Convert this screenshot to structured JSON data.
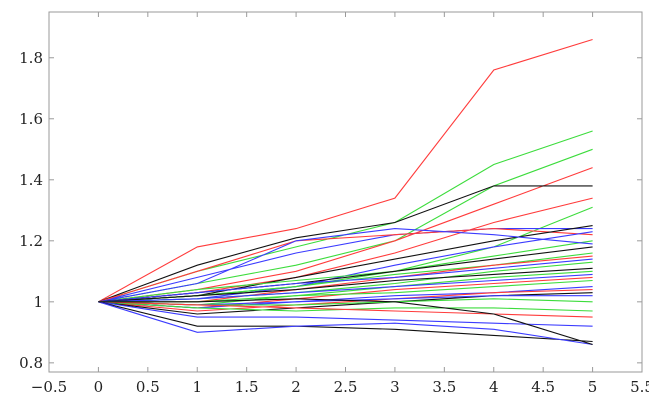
{
  "chart_data": {
    "type": "line",
    "title": "",
    "xlabel": "",
    "ylabel": "",
    "xlim": [
      -0.5,
      5.5
    ],
    "ylim": [
      0.77,
      1.95
    ],
    "xticks": [
      -0.5,
      0,
      0.5,
      1,
      1.5,
      2,
      2.5,
      3,
      3.5,
      4,
      4.5,
      5,
      5.5
    ],
    "xtick_labels": [
      "−0.5",
      "0",
      "0.5",
      "1",
      "1.5",
      "2",
      "2.5",
      "3",
      "3.5",
      "4",
      "4.5",
      "5",
      "5.5"
    ],
    "yticks": [
      0.8,
      1,
      1.2,
      1.4,
      1.6,
      1.8
    ],
    "ytick_labels": [
      "0.8",
      "1",
      "1.2",
      "1.4",
      "1.6",
      "1.8"
    ],
    "grid": false,
    "legend": "none",
    "x": [
      0,
      1,
      2,
      3,
      4,
      5
    ],
    "series": [
      {
        "color": "#ff3b3b",
        "values": [
          1,
          1.18,
          1.24,
          1.34,
          1.76,
          1.86
        ]
      },
      {
        "color": "#3cdc3c",
        "values": [
          1,
          1.1,
          1.18,
          1.26,
          1.45,
          1.56
        ]
      },
      {
        "color": "#3cdc3c",
        "values": [
          1,
          1.06,
          1.12,
          1.2,
          1.38,
          1.5
        ]
      },
      {
        "color": "#ff3b3b",
        "values": [
          1,
          1.04,
          1.1,
          1.2,
          1.32,
          1.44
        ]
      },
      {
        "color": "#111111",
        "values": [
          1,
          1.12,
          1.21,
          1.26,
          1.38,
          1.38
        ]
      },
      {
        "color": "#ff3b3b",
        "values": [
          1,
          1.03,
          1.08,
          1.16,
          1.26,
          1.34
        ]
      },
      {
        "color": "#3cdc3c",
        "values": [
          1,
          1.02,
          1.05,
          1.1,
          1.18,
          1.31
        ]
      },
      {
        "color": "#3b3bff",
        "values": [
          1,
          1.08,
          1.16,
          1.22,
          1.24,
          1.24
        ]
      },
      {
        "color": "#ff3b3b",
        "values": [
          1,
          1.1,
          1.2,
          1.22,
          1.24,
          1.22
        ]
      },
      {
        "color": "#111111",
        "values": [
          1,
          1.02,
          1.08,
          1.14,
          1.2,
          1.25
        ]
      },
      {
        "color": "#3b3bff",
        "values": [
          1,
          1.01,
          1.05,
          1.12,
          1.18,
          1.23
        ]
      },
      {
        "color": "#3cdc3c",
        "values": [
          1,
          1.04,
          1.07,
          1.1,
          1.15,
          1.2
        ]
      },
      {
        "color": "#3b3bff",
        "values": [
          1,
          1.06,
          1.2,
          1.24,
          1.22,
          1.19
        ]
      },
      {
        "color": "#111111",
        "values": [
          1,
          1.03,
          1.06,
          1.1,
          1.14,
          1.18
        ]
      },
      {
        "color": "#3cdc3c",
        "values": [
          1,
          1.02,
          1.05,
          1.09,
          1.12,
          1.16
        ]
      },
      {
        "color": "#ff3b3b",
        "values": [
          1,
          1.0,
          1.04,
          1.08,
          1.12,
          1.15
        ]
      },
      {
        "color": "#3b3bff",
        "values": [
          1,
          1.03,
          1.06,
          1.08,
          1.11,
          1.14
        ]
      },
      {
        "color": "#3cdc3c",
        "values": [
          1,
          1.01,
          1.03,
          1.06,
          1.1,
          1.13
        ]
      },
      {
        "color": "#111111",
        "values": [
          1,
          1.02,
          1.04,
          1.07,
          1.09,
          1.11
        ]
      },
      {
        "color": "#3cdc3c",
        "values": [
          1,
          0.99,
          1.02,
          1.05,
          1.08,
          1.1
        ]
      },
      {
        "color": "#3b3bff",
        "values": [
          1,
          1.01,
          1.03,
          1.05,
          1.07,
          1.09
        ]
      },
      {
        "color": "#ff3b3b",
        "values": [
          1,
          0.98,
          1.01,
          1.04,
          1.06,
          1.08
        ]
      },
      {
        "color": "#3cdc3c",
        "values": [
          1,
          1.0,
          1.02,
          1.03,
          1.05,
          1.07
        ]
      },
      {
        "color": "#3b3bff",
        "values": [
          1,
          0.99,
          1.0,
          1.02,
          1.03,
          1.05
        ]
      },
      {
        "color": "#ff3b3b",
        "values": [
          1,
          0.97,
          0.99,
          1.01,
          1.03,
          1.04
        ]
      },
      {
        "color": "#111111",
        "values": [
          1,
          0.96,
          0.98,
          1.0,
          1.02,
          1.03
        ]
      },
      {
        "color": "#3b3bff",
        "values": [
          1,
          0.98,
          1.0,
          1.01,
          1.02,
          1.02
        ]
      },
      {
        "color": "#3cdc3c",
        "values": [
          1,
          0.99,
          0.99,
          1.0,
          1.01,
          1.0
        ]
      },
      {
        "color": "#3cdc3c",
        "values": [
          1,
          0.98,
          0.97,
          0.98,
          0.98,
          0.97
        ]
      },
      {
        "color": "#ff3b3b",
        "values": [
          1,
          0.99,
          0.98,
          0.97,
          0.96,
          0.95
        ]
      },
      {
        "color": "#3b3bff",
        "values": [
          1,
          0.95,
          0.95,
          0.94,
          0.93,
          0.92
        ]
      },
      {
        "color": "#111111",
        "values": [
          1,
          0.92,
          0.92,
          0.91,
          0.89,
          0.87
        ]
      },
      {
        "color": "#3b3bff",
        "values": [
          1,
          0.9,
          0.92,
          0.93,
          0.91,
          0.86
        ]
      },
      {
        "color": "#111111",
        "values": [
          1,
          1.0,
          1.01,
          1.0,
          0.96,
          0.86
        ]
      }
    ]
  }
}
